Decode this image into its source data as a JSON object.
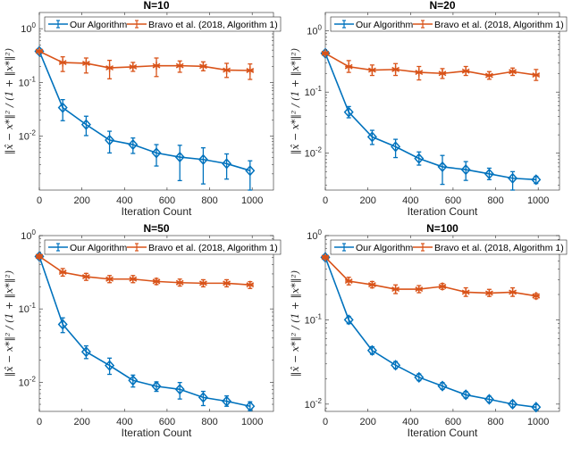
{
  "chart_data": [
    {
      "type": "line",
      "title": "N=10",
      "xlabel": "Iteration Count",
      "ylabel": "‖x̂ − x*‖² / (1 + ‖x*‖²)",
      "xlim": [
        0,
        1100
      ],
      "ylim": [
        0.001,
        2
      ],
      "yscale": "log",
      "xticks": [
        0,
        200,
        400,
        600,
        800,
        1000
      ],
      "yticks": [
        {
          "value": 1,
          "base": "10",
          "exp": "0"
        },
        {
          "value": 0.1,
          "base": "10",
          "exp": "-1"
        },
        {
          "value": 0.01,
          "base": "10",
          "exp": "-2"
        }
      ],
      "legend_position": "top",
      "x": [
        0,
        110,
        220,
        330,
        440,
        550,
        660,
        770,
        880,
        990
      ],
      "series": [
        {
          "name": "Our Algorithm",
          "color": "#0072BD",
          "marker": "diamond",
          "y": [
            0.38,
            0.034,
            0.0165,
            0.0085,
            0.007,
            0.0049,
            0.0041,
            0.0037,
            0.0031,
            0.0023
          ],
          "lo": [
            0.36,
            0.0195,
            0.0103,
            0.0049,
            0.0048,
            0.0028,
            0.0015,
            0.0013,
            0.0016,
            0.001
          ],
          "hi": [
            0.4,
            0.048,
            0.0236,
            0.0124,
            0.0093,
            0.007,
            0.0068,
            0.0061,
            0.0047,
            0.0035
          ]
        },
        {
          "name": "Bravo et al. (2018, Algorithm 1)",
          "color": "#D95319",
          "marker": "asterisk",
          "y": [
            0.38,
            0.235,
            0.227,
            0.187,
            0.195,
            0.205,
            0.205,
            0.2,
            0.17,
            0.167
          ],
          "lo": [
            0.36,
            0.16,
            0.15,
            0.117,
            0.161,
            0.129,
            0.155,
            0.165,
            0.124,
            0.114
          ],
          "hi": [
            0.4,
            0.3,
            0.285,
            0.258,
            0.236,
            0.285,
            0.251,
            0.242,
            0.227,
            0.221
          ]
        }
      ]
    },
    {
      "type": "line",
      "title": "N=20",
      "xlabel": "Iteration Count",
      "ylabel": "‖x̂ − x*‖² / (1 + ‖x*‖²)",
      "xlim": [
        0,
        1100
      ],
      "ylim": [
        0.0025,
        2
      ],
      "yscale": "log",
      "xticks": [
        0,
        200,
        400,
        600,
        800,
        1000
      ],
      "yticks": [
        {
          "value": 1,
          "base": "10",
          "exp": "0"
        },
        {
          "value": 0.1,
          "base": "10",
          "exp": "-1"
        },
        {
          "value": 0.01,
          "base": "10",
          "exp": "-2"
        }
      ],
      "legend_position": "top",
      "x": [
        0,
        110,
        220,
        330,
        440,
        550,
        660,
        770,
        880,
        990
      ],
      "series": [
        {
          "name": "Our Algorithm",
          "color": "#0072BD",
          "marker": "diamond",
          "y": [
            0.43,
            0.047,
            0.0185,
            0.0128,
            0.0082,
            0.006,
            0.0054,
            0.0046,
            0.0039,
            0.0037
          ],
          "lo": [
            0.41,
            0.038,
            0.0139,
            0.0085,
            0.0064,
            0.0031,
            0.0036,
            0.0037,
            0.0025,
            0.0032
          ],
          "hi": [
            0.45,
            0.058,
            0.0237,
            0.0169,
            0.0105,
            0.0092,
            0.0073,
            0.0057,
            0.005,
            0.0042
          ]
        },
        {
          "name": "Bravo et al. (2018, Algorithm 1)",
          "color": "#D95319",
          "marker": "asterisk",
          "y": [
            0.43,
            0.26,
            0.229,
            0.234,
            0.21,
            0.202,
            0.22,
            0.187,
            0.216,
            0.19
          ],
          "lo": [
            0.41,
            0.21,
            0.187,
            0.187,
            0.158,
            0.167,
            0.187,
            0.162,
            0.187,
            0.155
          ],
          "hi": [
            0.45,
            0.327,
            0.277,
            0.292,
            0.262,
            0.242,
            0.262,
            0.216,
            0.247,
            0.234
          ]
        }
      ]
    },
    {
      "type": "line",
      "title": "N=50",
      "xlabel": "Iteration Count",
      "ylabel": "‖x̂ − x*‖² / (1 + ‖x*‖²)",
      "xlim": [
        0,
        1100
      ],
      "ylim": [
        0.004,
        1
      ],
      "yscale": "log",
      "xticks": [
        0,
        200,
        400,
        600,
        800,
        1000
      ],
      "yticks": [
        {
          "value": 1,
          "base": "10",
          "exp": "0"
        },
        {
          "value": 0.1,
          "base": "10",
          "exp": "-1"
        },
        {
          "value": 0.01,
          "base": "10",
          "exp": "-2"
        }
      ],
      "legend_position": "top",
      "x": [
        0,
        110,
        220,
        330,
        440,
        550,
        660,
        770,
        880,
        990
      ],
      "series": [
        {
          "name": "Our Algorithm",
          "color": "#0072BD",
          "marker": "diamond",
          "y": [
            0.52,
            0.0615,
            0.026,
            0.0169,
            0.0106,
            0.0088,
            0.008,
            0.0062,
            0.0055,
            0.0047
          ],
          "lo": [
            0.5,
            0.0475,
            0.021,
            0.0128,
            0.0086,
            0.0075,
            0.0059,
            0.0048,
            0.0047,
            0.0041
          ],
          "hi": [
            0.54,
            0.0755,
            0.0313,
            0.0213,
            0.0125,
            0.0101,
            0.0099,
            0.0075,
            0.0065,
            0.0054
          ]
        },
        {
          "name": "Bravo et al. (2018, Algorithm 1)",
          "color": "#D95319",
          "marker": "asterisk",
          "y": [
            0.52,
            0.316,
            0.275,
            0.255,
            0.255,
            0.237,
            0.228,
            0.224,
            0.224,
            0.213
          ],
          "lo": [
            0.49,
            0.28,
            0.245,
            0.228,
            0.228,
            0.215,
            0.205,
            0.2,
            0.2,
            0.19
          ],
          "hi": [
            0.55,
            0.355,
            0.305,
            0.285,
            0.285,
            0.26,
            0.255,
            0.25,
            0.25,
            0.235
          ]
        }
      ]
    },
    {
      "type": "line",
      "title": "N=100",
      "xlabel": "Iteration Count",
      "ylabel": "‖x̂ − x*‖² / (1 + ‖x*‖²)",
      "xlim": [
        0,
        1100
      ],
      "ylim": [
        0.0082,
        1
      ],
      "yscale": "log",
      "xticks": [
        0,
        200,
        400,
        600,
        800,
        1000
      ],
      "yticks": [
        {
          "value": 1,
          "base": "10",
          "exp": "0"
        },
        {
          "value": 0.1,
          "base": "10",
          "exp": "-1"
        },
        {
          "value": 0.01,
          "base": "10",
          "exp": "-2"
        }
      ],
      "legend_position": "top",
      "x": [
        0,
        110,
        220,
        330,
        440,
        550,
        660,
        770,
        880,
        990
      ],
      "series": [
        {
          "name": "Our Algorithm",
          "color": "#0072BD",
          "marker": "diamond",
          "y": [
            0.552,
            0.1,
            0.0433,
            0.029,
            0.0208,
            0.0164,
            0.0129,
            0.0114,
            0.01,
            0.0092
          ],
          "lo": [
            0.53,
            0.09,
            0.039,
            0.0265,
            0.019,
            0.015,
            0.0118,
            0.0105,
            0.0092,
            0.0086
          ],
          "hi": [
            0.575,
            0.11,
            0.048,
            0.032,
            0.0228,
            0.018,
            0.0141,
            0.0124,
            0.0109,
            0.0099
          ]
        },
        {
          "name": "Bravo et al. (2018, Algorithm 1)",
          "color": "#D95319",
          "marker": "asterisk",
          "y": [
            0.552,
            0.288,
            0.261,
            0.231,
            0.231,
            0.249,
            0.213,
            0.208,
            0.213,
            0.192
          ],
          "lo": [
            0.53,
            0.26,
            0.24,
            0.205,
            0.21,
            0.23,
            0.19,
            0.19,
            0.19,
            0.178
          ],
          "hi": [
            0.575,
            0.32,
            0.285,
            0.26,
            0.255,
            0.27,
            0.24,
            0.23,
            0.24,
            0.205
          ]
        }
      ]
    }
  ]
}
